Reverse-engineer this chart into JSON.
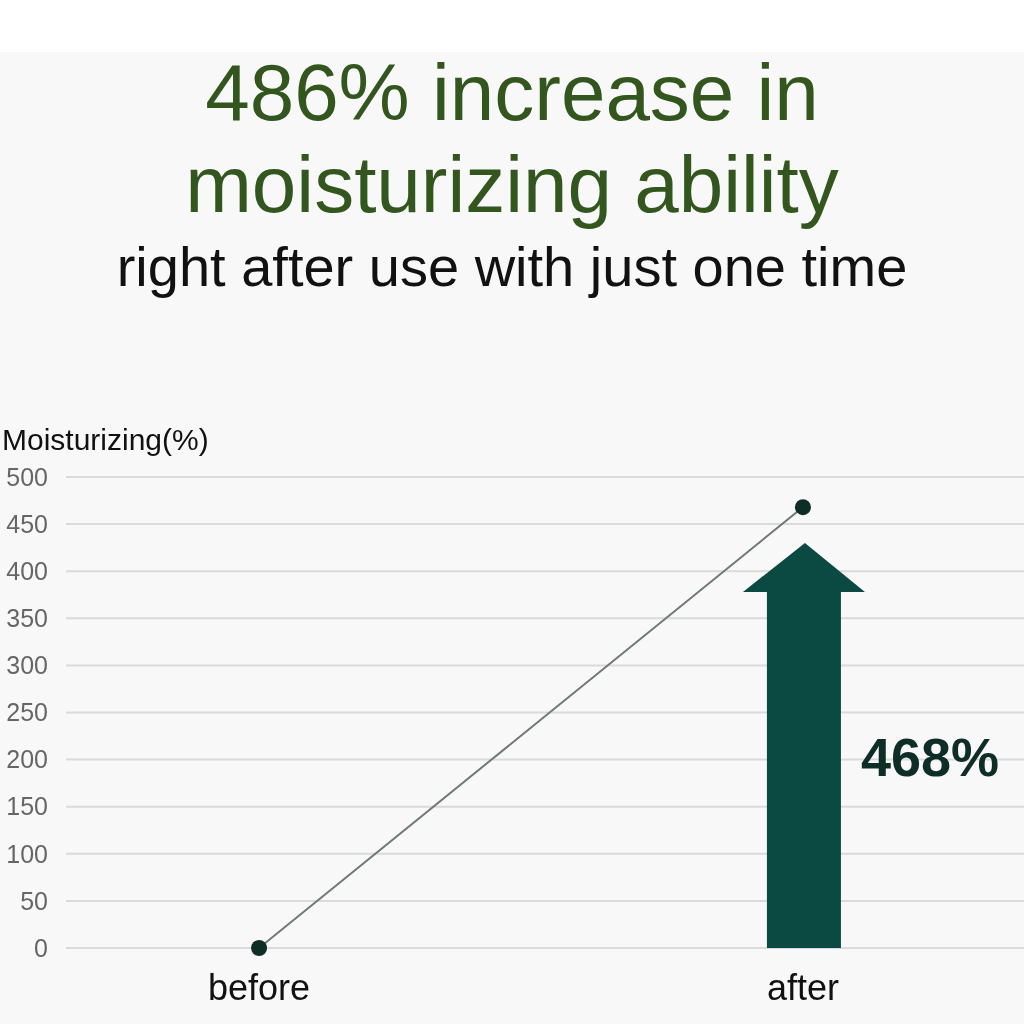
{
  "chart_data": {
    "type": "line",
    "title": "486% increase in moisturizing ability",
    "subtitle": "right after use with just one time",
    "ylabel": "Moisturizing(%)",
    "categories": [
      "before",
      "after"
    ],
    "series": [
      {
        "color": "#6e7a74",
        "colors": [
          "#0e2d27",
          "#0e2d27"
        ],
        "values": [
          0,
          468
        ]
      }
    ],
    "ylim": [
      0,
      500
    ],
    "yticks": [
      0,
      50,
      100,
      150,
      200,
      250,
      300,
      350,
      400,
      450,
      500
    ],
    "grid": "y",
    "marker": "circle",
    "line_style": "solid",
    "annotations": [
      "468%"
    ]
  }
}
